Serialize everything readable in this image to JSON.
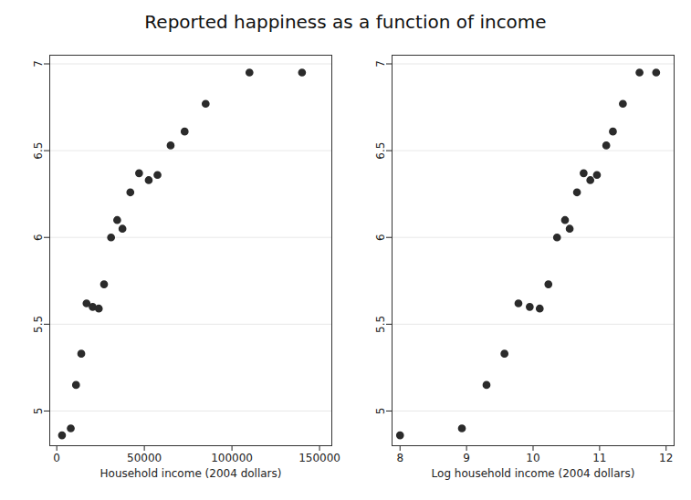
{
  "title": "Reported happiness as a function of income",
  "chart_data": [
    {
      "type": "scatter",
      "x_label": "Household income (2004 dollars)",
      "x": [
        3000,
        8000,
        11000,
        14000,
        17000,
        20500,
        24000,
        27000,
        31000,
        34500,
        37500,
        42000,
        47000,
        52500,
        57500,
        65000,
        73000,
        85000,
        110000,
        140000
      ],
      "values": [
        4.86,
        4.9,
        5.15,
        5.33,
        5.62,
        5.6,
        5.59,
        5.73,
        6.0,
        6.1,
        6.05,
        6.26,
        6.37,
        6.33,
        6.36,
        6.53,
        6.61,
        6.77,
        6.95,
        6.95
      ],
      "xlim": [
        -4000,
        157000
      ],
      "xticks": [
        0,
        50000,
        100000,
        150000
      ],
      "ylim": [
        4.8,
        7.05
      ],
      "yticks": [
        5,
        5.5,
        6,
        6.5,
        7
      ],
      "grid": true,
      "color": "#2b2b2b",
      "marker": "circle"
    },
    {
      "type": "scatter",
      "x_label": "Log household income (2004 dollars)",
      "x": [
        8.0,
        8.93,
        9.3,
        9.57,
        9.78,
        9.95,
        10.1,
        10.23,
        10.36,
        10.48,
        10.55,
        10.66,
        10.76,
        10.86,
        10.96,
        11.1,
        11.2,
        11.35,
        11.6,
        11.85
      ],
      "values": [
        4.86,
        4.9,
        5.15,
        5.33,
        5.62,
        5.6,
        5.59,
        5.73,
        6.0,
        6.1,
        6.05,
        6.26,
        6.37,
        6.33,
        6.36,
        6.53,
        6.61,
        6.77,
        6.95,
        6.95
      ],
      "xlim": [
        7.88,
        12.12
      ],
      "xticks": [
        8,
        9,
        10,
        11,
        12
      ],
      "ylim": [
        4.8,
        7.05
      ],
      "yticks": [
        5,
        5.5,
        6,
        6.5,
        7
      ],
      "grid": true,
      "color": "#2b2b2b",
      "marker": "circle"
    }
  ]
}
